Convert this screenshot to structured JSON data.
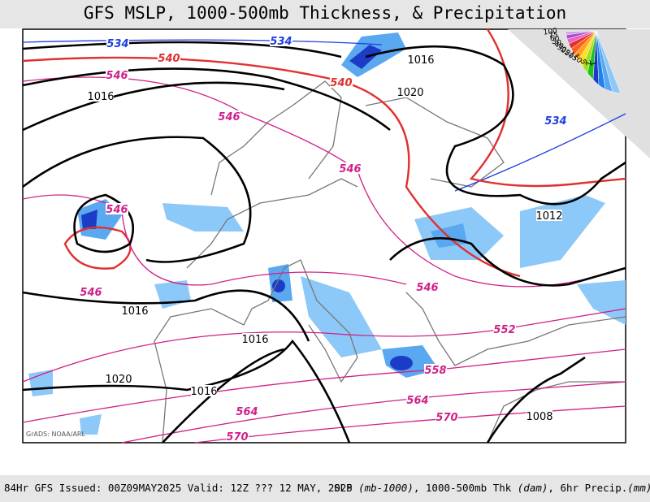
{
  "title": "GFS MSLP, 1000-500mb Thickness, & Precipitation",
  "credit": "GrADS: NOAA/ARL",
  "footer": {
    "left": "84Hr GFS Issued: 00Z09MAY2025 Valid: 12Z ??? 12 MAY, 2025",
    "right": [
      "SLP ",
      "(mb-1000)",
      ", 1000-500mb Thk ",
      "(dam)",
      ", 6hr Precip.",
      "(mm)"
    ]
  },
  "colorbar": [
    "100",
    "75",
    "60",
    "50",
    "40",
    "30",
    "25",
    "20",
    "15",
    "10",
    "5",
    "2",
    "1"
  ],
  "pressure_labels": [
    "1016",
    "1016",
    "1020",
    "1012",
    "1016",
    "1016",
    "1020",
    "1016",
    "1008"
  ],
  "thickness_labels": [
    "534",
    "534",
    "534",
    "540",
    "540",
    "546",
    "546",
    "546",
    "546",
    "546",
    "546",
    "552",
    "558",
    "564",
    "564",
    "570",
    "570"
  ]
}
